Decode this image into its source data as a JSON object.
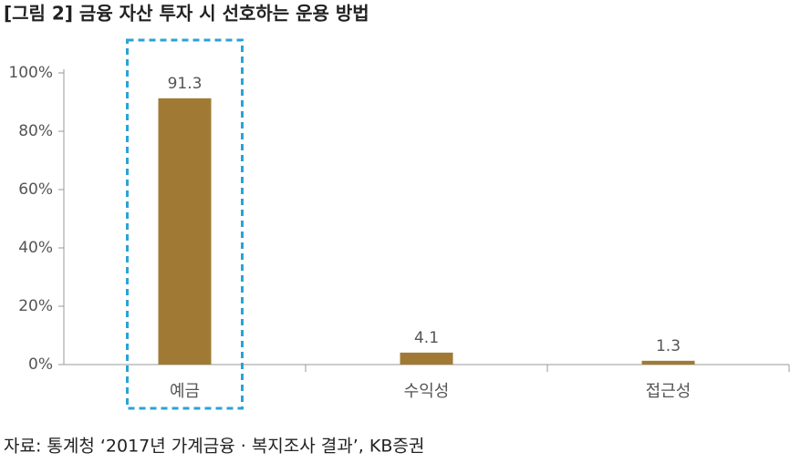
{
  "chart_data": {
    "type": "bar",
    "title": "[그림 2] 금융 자산 투자 시 선호하는 운용 방법",
    "source": "자료: 통계청 ‘2017년 가계금융 · 복지조사 결과’, KB증권",
    "categories": [
      "예금",
      "수익성",
      "접근성"
    ],
    "values": [
      91.3,
      4.1,
      1.3
    ],
    "color": "#a07a35",
    "ylim": [
      0,
      100
    ],
    "yticks": [
      {
        "value": 0,
        "label": "0%"
      },
      {
        "value": 20,
        "label": "20%"
      },
      {
        "value": 40,
        "label": "40%"
      },
      {
        "value": 60,
        "label": "60%"
      },
      {
        "value": 80,
        "label": "80%"
      },
      {
        "value": 100,
        "label": "100%"
      }
    ],
    "grid": false
  }
}
